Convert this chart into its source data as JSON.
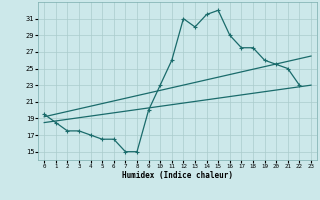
{
  "xlabel": "Humidex (Indice chaleur)",
  "bg_color": "#cce8ea",
  "grid_color": "#aacccc",
  "line_color": "#1a6b6b",
  "xlim": [
    -0.5,
    23.5
  ],
  "ylim": [
    14,
    33
  ],
  "yticks": [
    15,
    17,
    19,
    21,
    23,
    25,
    27,
    29,
    31
  ],
  "xticks": [
    0,
    1,
    2,
    3,
    4,
    5,
    6,
    7,
    8,
    9,
    10,
    11,
    12,
    13,
    14,
    15,
    16,
    17,
    18,
    19,
    20,
    21,
    22,
    23
  ],
  "curve1_x": [
    0,
    1,
    2,
    3,
    4,
    5,
    6,
    7,
    8,
    9,
    10,
    11,
    12,
    13,
    14,
    15,
    16,
    17,
    18,
    19,
    20,
    21,
    22
  ],
  "curve1_y": [
    19.5,
    18.5,
    17.5,
    17.5,
    17.0,
    16.5,
    16.5,
    15.0,
    15.0,
    20.0,
    23.0,
    26.0,
    31.0,
    30.0,
    31.5,
    32.0,
    29.0,
    27.5,
    27.5,
    26.0,
    25.5,
    25.0,
    23.0
  ],
  "line2_x": [
    0,
    23
  ],
  "line2_y": [
    19.2,
    26.5
  ],
  "line3_x": [
    0,
    23
  ],
  "line3_y": [
    18.5,
    23.0
  ]
}
